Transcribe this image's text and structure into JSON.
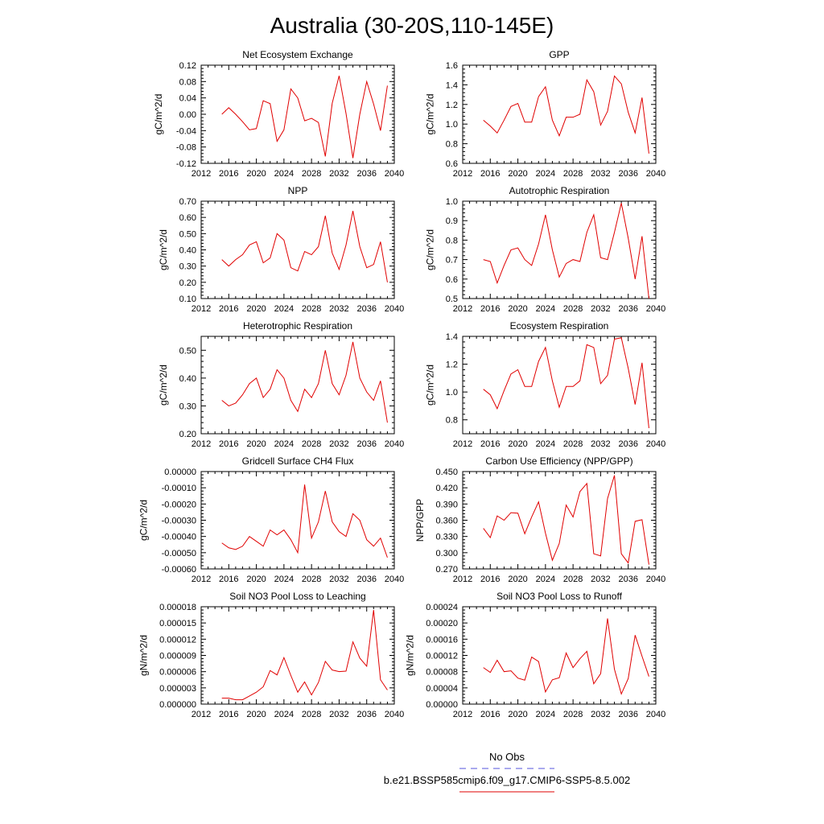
{
  "page_title": "Australia (30-20S,110-145E)",
  "legend": {
    "obs_label": "No Obs",
    "model_label": "b.e21.BSSP585cmip6.f09_g17.CMIP6-SSP5-8.5.002",
    "obs_color": "#5555dd",
    "model_color": "#e00000"
  },
  "chart_data": [
    {
      "type": "line",
      "title": "Net Ecosystem Exchange",
      "ylabel": "gC/m^2/d",
      "xlim": [
        2012,
        2040
      ],
      "xticks": [
        2012,
        2016,
        2020,
        2024,
        2028,
        2032,
        2036,
        2040
      ],
      "xtick_labels": [
        "2012",
        "2016",
        "2020",
        "2024",
        "2028",
        "2032",
        "2036",
        "2040"
      ],
      "ylim": [
        -0.12,
        0.12
      ],
      "yticks": [
        -0.12,
        -0.08,
        -0.04,
        0.0,
        0.04,
        0.08,
        0.12
      ],
      "ytick_labels": [
        "-0.12",
        "-0.08",
        "-0.04",
        "0.00",
        "0.04",
        "0.08",
        "0.12"
      ],
      "x": [
        2015,
        2016,
        2017,
        2018,
        2019,
        2020,
        2021,
        2022,
        2023,
        2024,
        2025,
        2026,
        2027,
        2028,
        2029,
        2030,
        2031,
        2032,
        2033,
        2034,
        2035,
        2036,
        2037,
        2038,
        2039
      ],
      "series": [
        {
          "values": [
            0.0,
            0.016,
            0.0,
            -0.018,
            -0.038,
            -0.035,
            0.033,
            0.026,
            -0.066,
            -0.038,
            0.062,
            0.04,
            -0.016,
            -0.01,
            -0.02,
            -0.103,
            0.027,
            0.094,
            0.002,
            -0.107,
            0.0,
            0.08,
            0.025,
            -0.04,
            0.07
          ]
        }
      ]
    },
    {
      "type": "line",
      "title": "GPP",
      "ylabel": "gC/m^2/d",
      "xlim": [
        2012,
        2040
      ],
      "xticks": [
        2012,
        2016,
        2020,
        2024,
        2028,
        2032,
        2036,
        2040
      ],
      "xtick_labels": [
        "2012",
        "2016",
        "2020",
        "2024",
        "2028",
        "2032",
        "2036",
        "2040"
      ],
      "ylim": [
        0.6,
        1.6
      ],
      "yticks": [
        0.6,
        0.8,
        1.0,
        1.2,
        1.4,
        1.6
      ],
      "ytick_labels": [
        "0.6",
        "0.8",
        "1.0",
        "1.2",
        "1.4",
        "1.6"
      ],
      "x": [
        2015,
        2016,
        2017,
        2018,
        2019,
        2020,
        2021,
        2022,
        2023,
        2024,
        2025,
        2026,
        2027,
        2028,
        2029,
        2030,
        2031,
        2032,
        2033,
        2034,
        2035,
        2036,
        2037,
        2038,
        2039
      ],
      "series": [
        {
          "values": [
            1.04,
            0.98,
            0.91,
            1.04,
            1.18,
            1.21,
            1.02,
            1.02,
            1.28,
            1.38,
            1.04,
            0.88,
            1.07,
            1.07,
            1.1,
            1.45,
            1.33,
            0.99,
            1.13,
            1.49,
            1.41,
            1.12,
            0.91,
            1.27,
            0.7
          ]
        }
      ]
    },
    {
      "type": "line",
      "title": "NPP",
      "ylabel": "gC/m^2/d",
      "xlim": [
        2012,
        2040
      ],
      "xticks": [
        2012,
        2016,
        2020,
        2024,
        2028,
        2032,
        2036,
        2040
      ],
      "xtick_labels": [
        "2012",
        "2016",
        "2020",
        "2024",
        "2028",
        "2032",
        "2036",
        "2040"
      ],
      "ylim": [
        0.1,
        0.7
      ],
      "yticks": [
        0.1,
        0.2,
        0.3,
        0.4,
        0.5,
        0.6,
        0.7
      ],
      "ytick_labels": [
        "0.10",
        "0.20",
        "0.30",
        "0.40",
        "0.50",
        "0.60",
        "0.70"
      ],
      "x": [
        2015,
        2016,
        2017,
        2018,
        2019,
        2020,
        2021,
        2022,
        2023,
        2024,
        2025,
        2026,
        2027,
        2028,
        2029,
        2030,
        2031,
        2032,
        2033,
        2034,
        2035,
        2036,
        2037,
        2038,
        2039
      ],
      "series": [
        {
          "values": [
            0.34,
            0.3,
            0.34,
            0.37,
            0.43,
            0.45,
            0.32,
            0.35,
            0.5,
            0.46,
            0.29,
            0.27,
            0.39,
            0.37,
            0.42,
            0.61,
            0.38,
            0.28,
            0.43,
            0.64,
            0.42,
            0.29,
            0.31,
            0.45,
            0.2
          ]
        }
      ]
    },
    {
      "type": "line",
      "title": "Autotrophic Respiration",
      "ylabel": "gC/m^2/d",
      "xlim": [
        2012,
        2040
      ],
      "xticks": [
        2012,
        2016,
        2020,
        2024,
        2028,
        2032,
        2036,
        2040
      ],
      "xtick_labels": [
        "2012",
        "2016",
        "2020",
        "2024",
        "2028",
        "2032",
        "2036",
        "2040"
      ],
      "ylim": [
        0.5,
        1.0
      ],
      "yticks": [
        0.5,
        0.6,
        0.7,
        0.8,
        0.9,
        1.0
      ],
      "ytick_labels": [
        "0.5",
        "0.6",
        "0.7",
        "0.8",
        "0.9",
        "1.0"
      ],
      "x": [
        2015,
        2016,
        2017,
        2018,
        2019,
        2020,
        2021,
        2022,
        2023,
        2024,
        2025,
        2026,
        2027,
        2028,
        2029,
        2030,
        2031,
        2032,
        2033,
        2034,
        2035,
        2036,
        2037,
        2038,
        2039
      ],
      "series": [
        {
          "values": [
            0.7,
            0.69,
            0.58,
            0.67,
            0.75,
            0.76,
            0.7,
            0.67,
            0.78,
            0.93,
            0.75,
            0.61,
            0.68,
            0.7,
            0.69,
            0.84,
            0.93,
            0.71,
            0.7,
            0.84,
            0.99,
            0.81,
            0.6,
            0.82,
            0.5
          ]
        }
      ]
    },
    {
      "type": "line",
      "title": "Heterotrophic Respiration",
      "ylabel": "gC/m^2/d",
      "xlim": [
        2012,
        2040
      ],
      "xticks": [
        2012,
        2016,
        2020,
        2024,
        2028,
        2032,
        2036,
        2040
      ],
      "xtick_labels": [
        "2012",
        "2016",
        "2020",
        "2024",
        "2028",
        "2032",
        "2036",
        "2040"
      ],
      "ylim": [
        0.2,
        0.55
      ],
      "yticks": [
        0.2,
        0.3,
        0.4,
        0.5
      ],
      "ytick_labels": [
        "0.20",
        "0.30",
        "0.40",
        "0.50"
      ],
      "x": [
        2015,
        2016,
        2017,
        2018,
        2019,
        2020,
        2021,
        2022,
        2023,
        2024,
        2025,
        2026,
        2027,
        2028,
        2029,
        2030,
        2031,
        2032,
        2033,
        2034,
        2035,
        2036,
        2037,
        2038,
        2039
      ],
      "series": [
        {
          "values": [
            0.32,
            0.3,
            0.31,
            0.34,
            0.38,
            0.4,
            0.33,
            0.36,
            0.43,
            0.4,
            0.32,
            0.28,
            0.36,
            0.33,
            0.38,
            0.5,
            0.38,
            0.34,
            0.41,
            0.53,
            0.4,
            0.35,
            0.32,
            0.39,
            0.24
          ]
        }
      ]
    },
    {
      "type": "line",
      "title": "Ecosystem Respiration",
      "ylabel": "gC/m^2/d",
      "xlim": [
        2012,
        2040
      ],
      "xticks": [
        2012,
        2016,
        2020,
        2024,
        2028,
        2032,
        2036,
        2040
      ],
      "xtick_labels": [
        "2012",
        "2016",
        "2020",
        "2024",
        "2028",
        "2032",
        "2036",
        "2040"
      ],
      "ylim": [
        0.7,
        1.4
      ],
      "yticks": [
        0.8,
        1.0,
        1.2,
        1.4
      ],
      "ytick_labels": [
        "0.8",
        "1.0",
        "1.2",
        "1.4"
      ],
      "x": [
        2015,
        2016,
        2017,
        2018,
        2019,
        2020,
        2021,
        2022,
        2023,
        2024,
        2025,
        2026,
        2027,
        2028,
        2029,
        2030,
        2031,
        2032,
        2033,
        2034,
        2035,
        2036,
        2037,
        2038,
        2039
      ],
      "series": [
        {
          "values": [
            1.02,
            0.98,
            0.88,
            1.01,
            1.13,
            1.16,
            1.04,
            1.04,
            1.22,
            1.32,
            1.08,
            0.89,
            1.04,
            1.04,
            1.08,
            1.34,
            1.32,
            1.06,
            1.12,
            1.38,
            1.39,
            1.17,
            0.91,
            1.21,
            0.74
          ]
        }
      ]
    },
    {
      "type": "line",
      "title": "Gridcell Surface CH4 Flux",
      "ylabel": "gC/m^2/d",
      "xlim": [
        2012,
        2040
      ],
      "xticks": [
        2012,
        2016,
        2020,
        2024,
        2028,
        2032,
        2036,
        2040
      ],
      "xtick_labels": [
        "2012",
        "2016",
        "2020",
        "2024",
        "2028",
        "2032",
        "2036",
        "2040"
      ],
      "ylim": [
        -0.0006,
        0.0
      ],
      "yticks": [
        -0.0006,
        -0.0005,
        -0.0004,
        -0.0003,
        -0.0002,
        -0.0001,
        0.0
      ],
      "ytick_labels": [
        "-0.00060",
        "-0.00050",
        "-0.00040",
        "-0.00030",
        "-0.00020",
        "-0.00010",
        "0.00000"
      ],
      "x": [
        2015,
        2016,
        2017,
        2018,
        2019,
        2020,
        2021,
        2022,
        2023,
        2024,
        2025,
        2026,
        2027,
        2028,
        2029,
        2030,
        2031,
        2032,
        2033,
        2034,
        2035,
        2036,
        2037,
        2038,
        2039
      ],
      "series": [
        {
          "values": [
            -0.00044,
            -0.00047,
            -0.00048,
            -0.00046,
            -0.0004,
            -0.00043,
            -0.00046,
            -0.00036,
            -0.00039,
            -0.00036,
            -0.00042,
            -0.0005,
            -8e-05,
            -0.00041,
            -0.00031,
            -0.00012,
            -0.00031,
            -0.00037,
            -0.0004,
            -0.00026,
            -0.0003,
            -0.00042,
            -0.00046,
            -0.00041,
            -0.00053
          ]
        }
      ]
    },
    {
      "type": "line",
      "title": "Carbon Use Efficiency (NPP/GPP)",
      "ylabel": "NPP/GPP",
      "xlim": [
        2012,
        2040
      ],
      "xticks": [
        2012,
        2016,
        2020,
        2024,
        2028,
        2032,
        2036,
        2040
      ],
      "xtick_labels": [
        "2012",
        "2016",
        "2020",
        "2024",
        "2028",
        "2032",
        "2036",
        "2040"
      ],
      "ylim": [
        0.27,
        0.45
      ],
      "yticks": [
        0.27,
        0.3,
        0.33,
        0.36,
        0.39,
        0.42,
        0.45
      ],
      "ytick_labels": [
        "0.270",
        "0.300",
        "0.330",
        "0.360",
        "0.390",
        "0.420",
        "0.450"
      ],
      "x": [
        2015,
        2016,
        2017,
        2018,
        2019,
        2020,
        2021,
        2022,
        2023,
        2024,
        2025,
        2026,
        2027,
        2028,
        2029,
        2030,
        2031,
        2032,
        2033,
        2034,
        2035,
        2036,
        2037,
        2038,
        2039
      ],
      "series": [
        {
          "values": [
            0.345,
            0.328,
            0.368,
            0.36,
            0.374,
            0.373,
            0.335,
            0.366,
            0.394,
            0.336,
            0.286,
            0.317,
            0.388,
            0.366,
            0.413,
            0.428,
            0.298,
            0.294,
            0.4,
            0.443,
            0.298,
            0.281,
            0.358,
            0.361,
            0.278
          ]
        }
      ]
    },
    {
      "type": "line",
      "title": "Soil NO3 Pool Loss to Leaching",
      "ylabel": "gN/m^2/d",
      "xlim": [
        2012,
        2040
      ],
      "xticks": [
        2012,
        2016,
        2020,
        2024,
        2028,
        2032,
        2036,
        2040
      ],
      "xtick_labels": [
        "2012",
        "2016",
        "2020",
        "2024",
        "2028",
        "2032",
        "2036",
        "2040"
      ],
      "ylim": [
        0.0,
        1.8e-05
      ],
      "yticks": [
        0.0,
        3e-06,
        6e-06,
        9e-06,
        1.2e-05,
        1.5e-05,
        1.8e-05
      ],
      "ytick_labels": [
        "0.000000",
        "0.000003",
        "0.000006",
        "0.000009",
        "0.000012",
        "0.000015",
        "0.000018"
      ],
      "x": [
        2015,
        2016,
        2017,
        2018,
        2019,
        2020,
        2021,
        2022,
        2023,
        2024,
        2025,
        2026,
        2027,
        2028,
        2029,
        2030,
        2031,
        2032,
        2033,
        2034,
        2035,
        2036,
        2037,
        2038,
        2039
      ],
      "series": [
        {
          "values": [
            1.1e-06,
            1.1e-06,
            8e-07,
            8e-07,
            1.5e-06,
            2.2e-06,
            3.2e-06,
            6.2e-06,
            5.4e-06,
            8.6e-06,
            5.3e-06,
            2.2e-06,
            4.1e-06,
            1.7e-06,
            4e-06,
            7.9e-06,
            6.3e-06,
            6e-06,
            6.1e-06,
            1.15e-05,
            8.5e-06,
            7e-06,
            1.74e-05,
            4.5e-06,
            2.6e-06
          ]
        }
      ]
    },
    {
      "type": "line",
      "title": "Soil NO3 Pool Loss to Runoff",
      "ylabel": "gN/m^2/d",
      "xlim": [
        2012,
        2040
      ],
      "xticks": [
        2012,
        2016,
        2020,
        2024,
        2028,
        2032,
        2036,
        2040
      ],
      "xtick_labels": [
        "2012",
        "2016",
        "2020",
        "2024",
        "2028",
        "2032",
        "2036",
        "2040"
      ],
      "ylim": [
        0.0,
        0.00024
      ],
      "yticks": [
        0.0,
        4e-05,
        8e-05,
        0.00012,
        0.00016,
        0.0002,
        0.00024
      ],
      "ytick_labels": [
        "0.00000",
        "0.00004",
        "0.00008",
        "0.00012",
        "0.00016",
        "0.00020",
        "0.00024"
      ],
      "x": [
        2015,
        2016,
        2017,
        2018,
        2019,
        2020,
        2021,
        2022,
        2023,
        2024,
        2025,
        2026,
        2027,
        2028,
        2029,
        2030,
        2031,
        2032,
        2033,
        2034,
        2035,
        2036,
        2037,
        2038,
        2039
      ],
      "series": [
        {
          "values": [
            9e-05,
            7.8e-05,
            0.000108,
            8e-05,
            8.2e-05,
            6.4e-05,
            5.9e-05,
            0.000116,
            0.000105,
            3e-05,
            6e-05,
            6.5e-05,
            0.000126,
            9e-05,
            0.000112,
            0.00013,
            5e-05,
            7.5e-05,
            0.000211,
            8.6e-05,
            2.5e-05,
            6.3e-05,
            0.00017,
            0.000118,
            6.8e-05
          ]
        }
      ]
    }
  ]
}
